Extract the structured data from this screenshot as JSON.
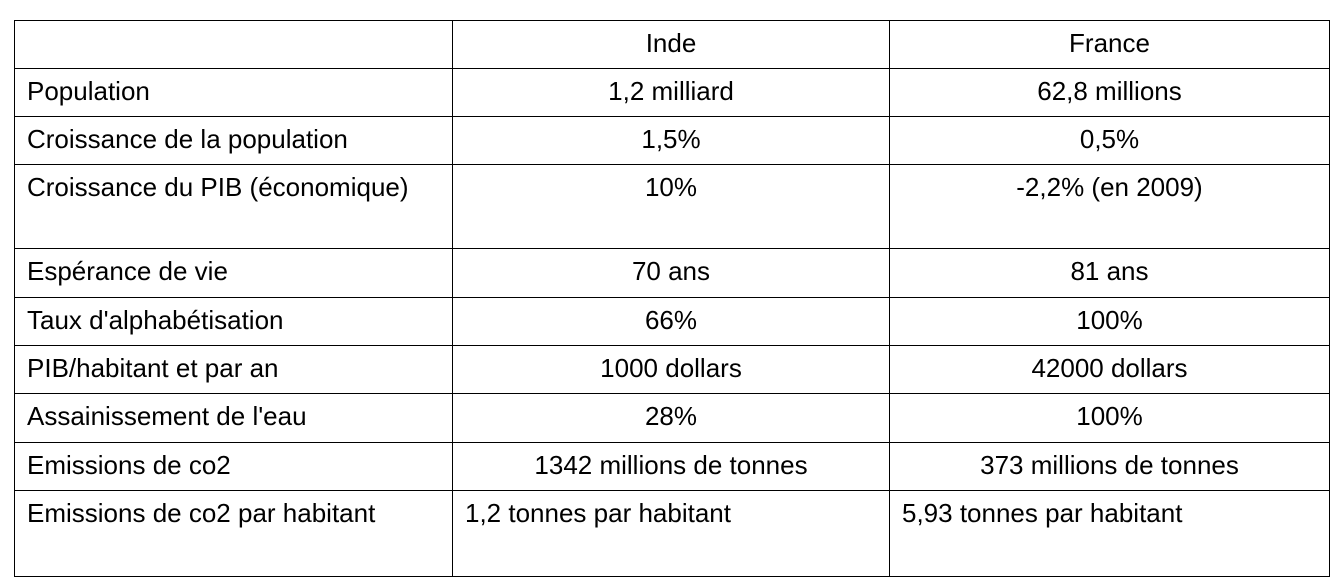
{
  "table": {
    "columns": [
      "Inde",
      "France"
    ],
    "rows": [
      [
        "Population",
        "1,2 milliard",
        "62,8 millions"
      ],
      [
        "Croissance de la population",
        "1,5%",
        "0,5%"
      ],
      [
        "Croissance du PIB (économique)",
        "10%",
        "-2,2% (en 2009)"
      ],
      [
        "Espérance de vie",
        "70 ans",
        "81 ans"
      ],
      [
        "Taux d'alphabétisation",
        "66%",
        "100%"
      ],
      [
        "PIB/habitant et par an",
        "1000 dollars",
        "42000 dollars"
      ],
      [
        "Assainissement de l'eau",
        "28%",
        "100%"
      ],
      [
        "Emissions de co2",
        "1342 millions de tonnes",
        "373 millions de tonnes"
      ],
      [
        "Emissions de co2 par habitant",
        "1,2 tonnes par habitant",
        "5,93 tonnes par habitant"
      ]
    ]
  }
}
